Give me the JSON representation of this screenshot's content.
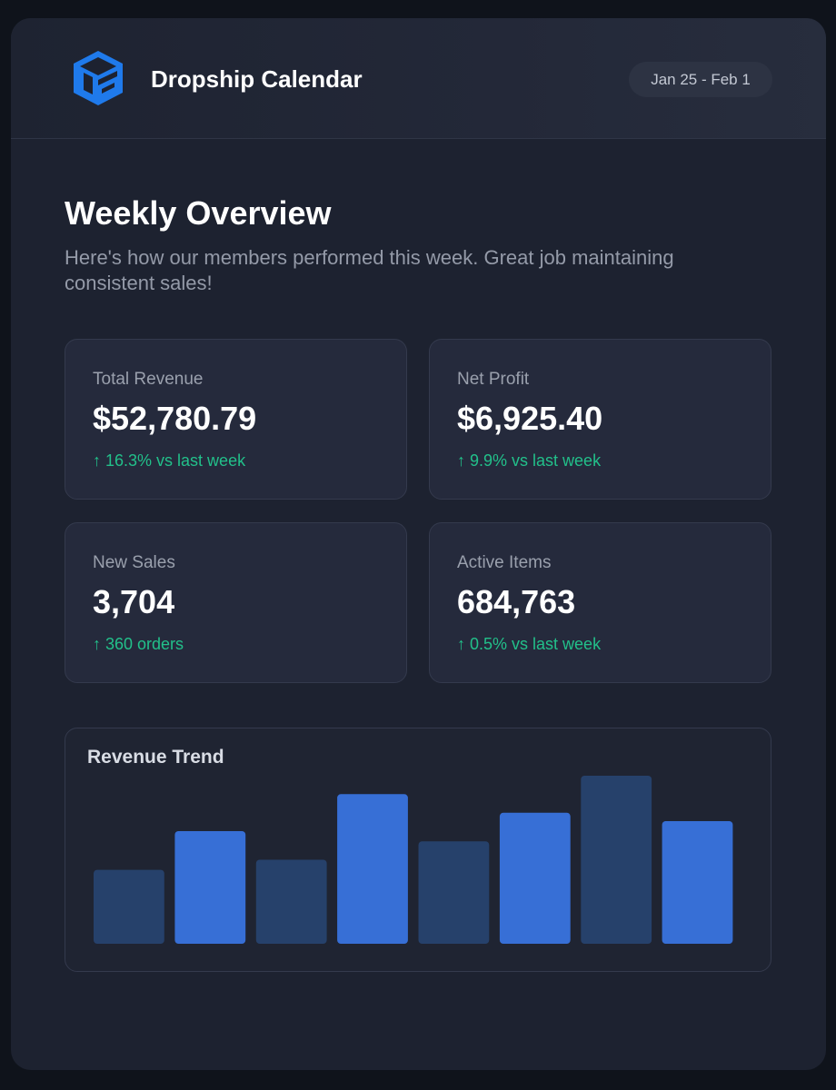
{
  "header": {
    "brand": "Dropship Calendar",
    "date_range": "Jan 25 - Feb 1"
  },
  "overview": {
    "title": "Weekly Overview",
    "subtitle": "Here's how our members performed this week. Great job maintaining consistent sales!"
  },
  "stats": [
    {
      "label": "Total Revenue",
      "value": "$52,780.79",
      "change": "↑ 16.3% vs last week"
    },
    {
      "label": "Net Profit",
      "value": "$6,925.40",
      "change": "↑ 9.9% vs last week"
    },
    {
      "label": "New Sales",
      "value": "3,704",
      "change": "↑ 360 orders"
    },
    {
      "label": "Active Items",
      "value": "684,763",
      "change": "↑ 0.5% vs last week"
    }
  ],
  "colors": {
    "accent_positive": "#22c08a",
    "bar_dark": "#26416b",
    "bar_bright": "#376fd6",
    "logo_blue": "#1f7aeb"
  },
  "chart_data": {
    "type": "bar",
    "title": "Revenue Trend",
    "categories": [
      "",
      "",
      "",
      "",
      "",
      "",
      "",
      ""
    ],
    "values": [
      44,
      67,
      50,
      89,
      61,
      78,
      100,
      73
    ],
    "ylim": [
      0,
      100
    ],
    "xlabel": "",
    "ylabel": "",
    "grid": false,
    "legend": "none"
  }
}
